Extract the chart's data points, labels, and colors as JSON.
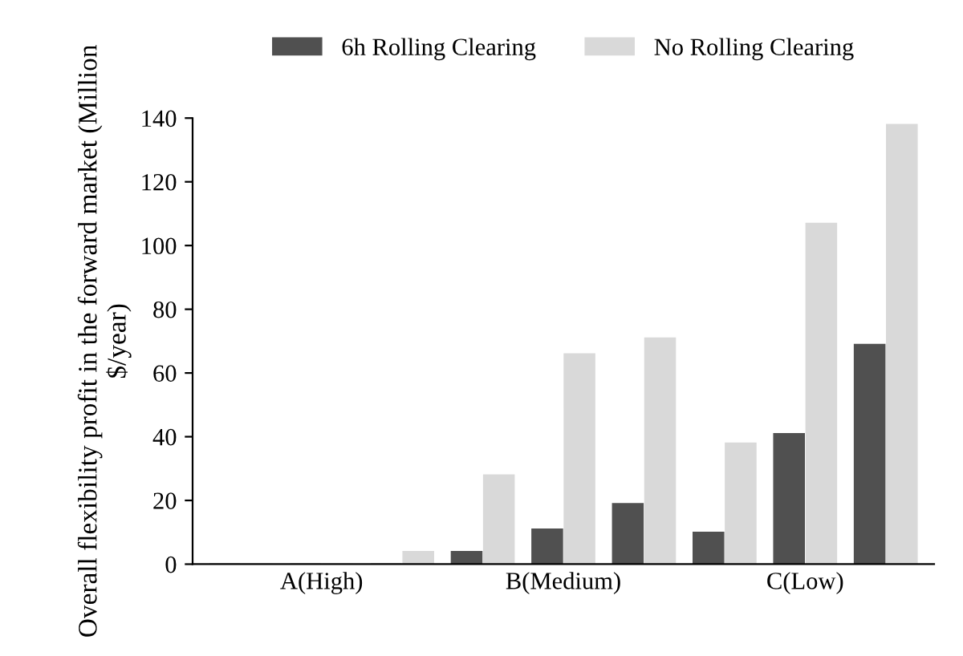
{
  "chart_data": {
    "type": "bar",
    "ylabel": "Overall flexibility profit in the forward market (Million $/year)",
    "categories": [
      null,
      "A(High)",
      null,
      null,
      "B(Medium)",
      null,
      null,
      "C(Low)",
      null
    ],
    "series": [
      {
        "name": "6h Rolling Clearing",
        "color": "#505050",
        "values": [
          0,
          0,
          0,
          4,
          11,
          19,
          10,
          41,
          69
        ]
      },
      {
        "name": "No Rolling Clearing",
        "color": "#d9d9d9",
        "values": [
          0,
          0,
          4,
          28,
          66,
          71,
          38,
          107,
          138
        ]
      }
    ],
    "ylim": [
      0,
      140
    ],
    "yticks": [
      0,
      20,
      40,
      60,
      80,
      100,
      120,
      140
    ],
    "grid": false,
    "legend": "top"
  }
}
